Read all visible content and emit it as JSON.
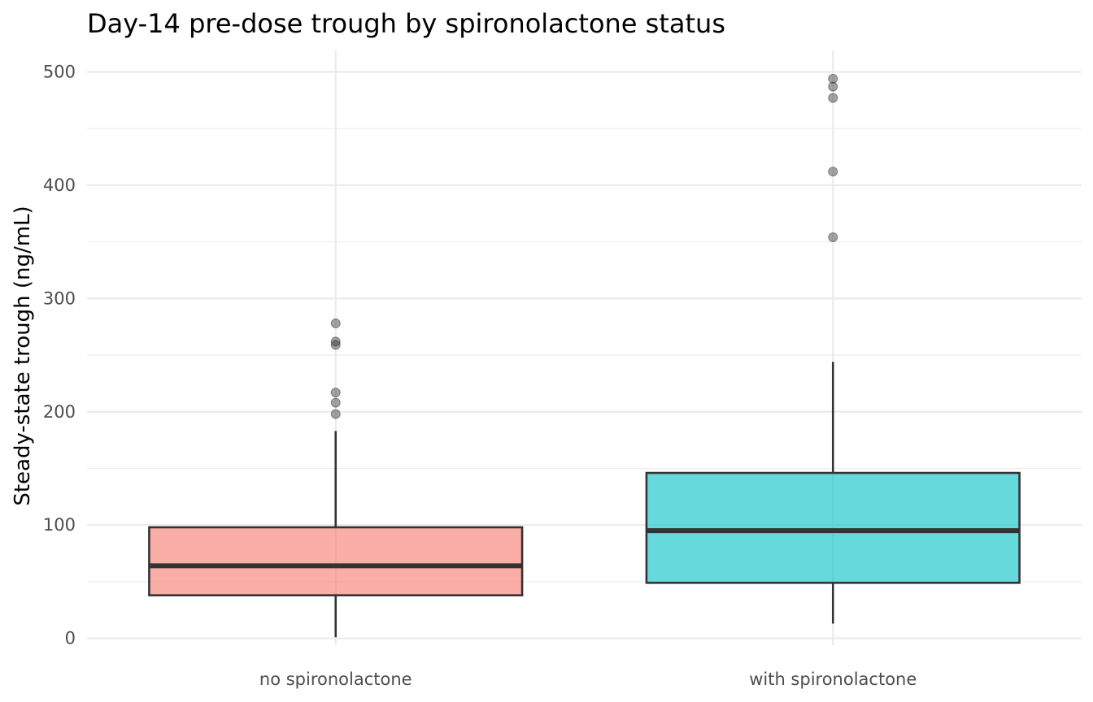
{
  "chart_data": {
    "type": "box",
    "title": "Day-14 pre-dose trough by spironolactone status",
    "xlabel": "",
    "ylabel": "Steady-state trough (ng/mL)",
    "ylim": [
      -6,
      519
    ],
    "y_ticks": [
      0,
      100,
      200,
      300,
      400,
      500
    ],
    "y_tick_labels": [
      "0",
      "100",
      "200",
      "300",
      "400",
      "500"
    ],
    "y_minor_ticks": [
      50,
      150,
      250,
      350,
      450
    ],
    "grid": true,
    "legend": "none",
    "categories": [
      "no spironolactone",
      "with spironolactone"
    ],
    "groups": [
      {
        "label": "no spironolactone",
        "color": "#F8766D",
        "whisker_low": 1,
        "q1": 38,
        "median": 64,
        "q3": 98,
        "whisker_high": 183,
        "outliers": [
          198,
          208,
          217,
          259,
          262,
          278
        ]
      },
      {
        "label": "with spironolactone",
        "color": "#00BFC4",
        "whisker_low": 13,
        "q1": 49,
        "median": 95,
        "q3": 146,
        "whisker_high": 244,
        "outliers": [
          354,
          412,
          477,
          487,
          494
        ]
      }
    ]
  }
}
